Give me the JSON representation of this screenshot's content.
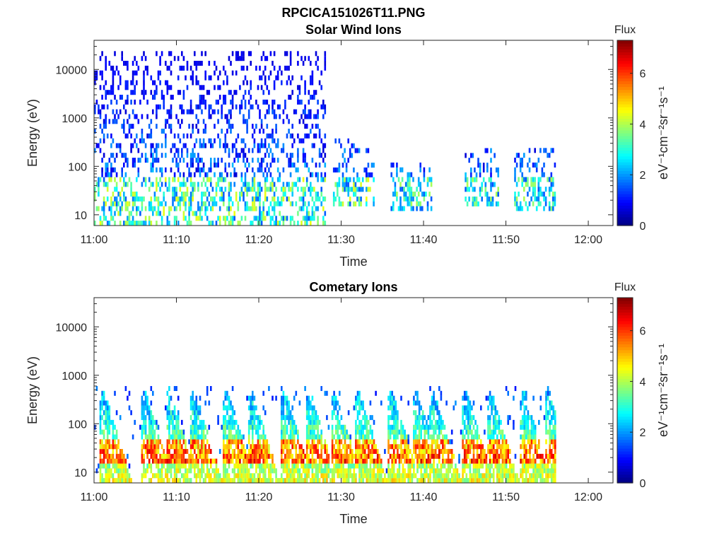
{
  "figure_title": "RPCICA151026T11.PNG",
  "chart_data": [
    {
      "type": "heatmap",
      "title": "Solar Wind Ions",
      "xlabel": "Time",
      "ylabel": "Energy (eV)",
      "x_ticks": [
        "11:00",
        "11:10",
        "11:20",
        "11:30",
        "11:40",
        "11:50",
        "12:00"
      ],
      "xlim": [
        "11:00",
        "12:03"
      ],
      "y_scale": "log",
      "y_ticks": [
        "10",
        "100",
        "1000",
        "10000"
      ],
      "ylim": [
        6,
        40000
      ],
      "colorbar": {
        "title": "Flux",
        "label": "eV⁻¹cm⁻²sr⁻¹s⁻¹",
        "ticks": [
          "0",
          "2",
          "4",
          "6"
        ],
        "range": [
          0,
          7.3
        ],
        "colormap": "jet"
      },
      "active_periods": [
        {
          "start": "11:00",
          "end": "11:28",
          "emin": 6,
          "emax": 20000,
          "peak_flux": 4.5
        },
        {
          "start": "11:29",
          "end": "11:34",
          "emin": 15,
          "emax": 300,
          "peak_flux": 4.5
        },
        {
          "start": "11:36",
          "end": "11:41",
          "emin": 12,
          "emax": 100,
          "peak_flux": 4.0
        },
        {
          "start": "11:45",
          "end": "11:49",
          "emin": 15,
          "emax": 200,
          "peak_flux": 4.0
        },
        {
          "start": "11:51",
          "end": "11:56",
          "emin": 12,
          "emax": 200,
          "peak_flux": 4.0
        }
      ]
    },
    {
      "type": "heatmap",
      "title": "Cometary Ions",
      "xlabel": "Time",
      "ylabel": "Energy (eV)",
      "x_ticks": [
        "11:00",
        "11:10",
        "11:20",
        "11:30",
        "11:40",
        "11:50",
        "12:00"
      ],
      "xlim": [
        "11:00",
        "12:03"
      ],
      "y_scale": "log",
      "y_ticks": [
        "10",
        "100",
        "1000",
        "10000"
      ],
      "ylim": [
        6,
        40000
      ],
      "colorbar": {
        "title": "Flux",
        "label": "eV⁻¹cm⁻²sr⁻¹s⁻¹",
        "ticks": [
          "0",
          "2",
          "4",
          "6"
        ],
        "range": [
          0,
          7.3
        ],
        "colormap": "jet"
      },
      "active_periods": [
        {
          "start": "11:00",
          "end": "11:56",
          "emin": 6,
          "emax": 600,
          "peak_flux": 6.5
        }
      ],
      "bursts": [
        "11:01",
        "11:06",
        "11:09",
        "11:12",
        "11:16",
        "11:19",
        "11:23",
        "11:26",
        "11:29",
        "11:32",
        "11:36",
        "11:39",
        "11:41",
        "11:45",
        "11:48",
        "11:52",
        "11:55"
      ]
    }
  ]
}
